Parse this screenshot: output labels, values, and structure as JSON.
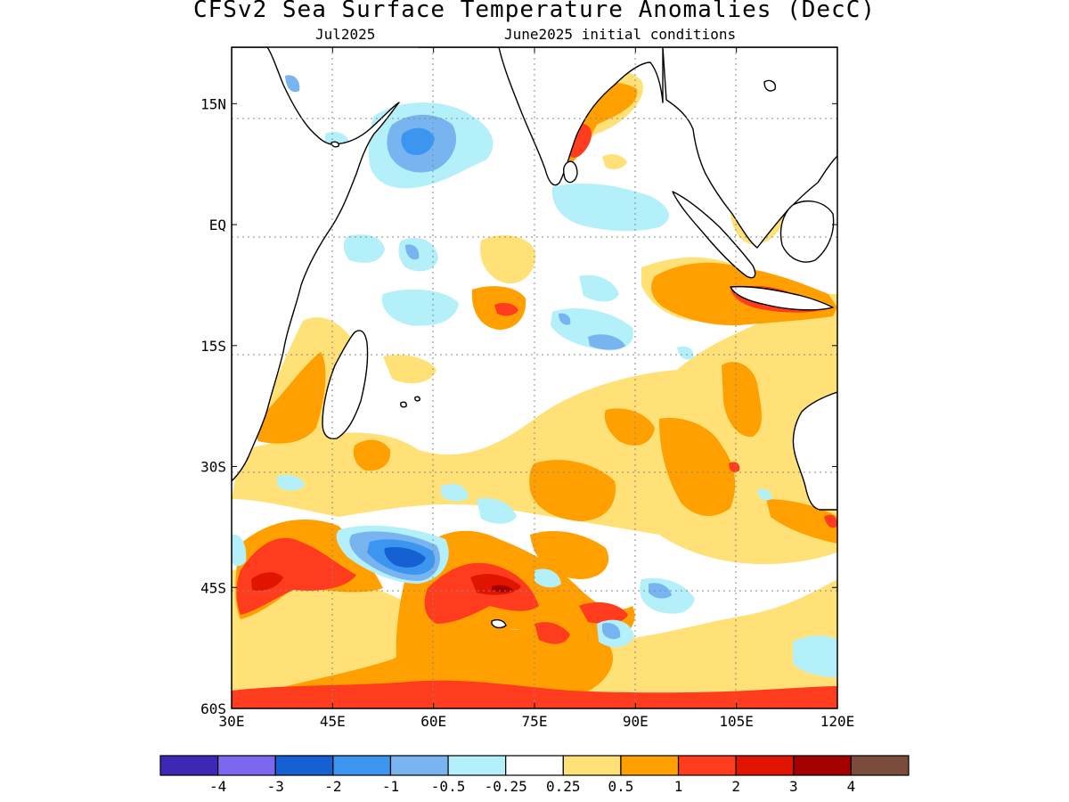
{
  "header": {
    "title": "CFSv2 Sea Surface Temperature Anomalies (DecC)",
    "month": "Jul2025",
    "init": "June2025 initial conditions"
  },
  "axes": {
    "lat_labels": [
      "15N",
      "EQ",
      "15S",
      "30S",
      "45S",
      "60S"
    ],
    "lon_labels": [
      "30E",
      "45E",
      "60E",
      "75E",
      "90E",
      "105E",
      "120E"
    ],
    "lat_values": [
      15,
      0,
      -15,
      -30,
      -45,
      -60
    ],
    "lon_values": [
      30,
      45,
      60,
      75,
      90,
      105,
      120
    ],
    "lat_range": [
      -60,
      22
    ],
    "lon_range": [
      30,
      120
    ]
  },
  "colorbar": {
    "colors": [
      "#3c28b4",
      "#7b68ee",
      "#1560d2",
      "#3c96f0",
      "#78b4f0",
      "#b4f0fa",
      "#ffffff",
      "#ffe178",
      "#ffa000",
      "#ff3c1e",
      "#e11400",
      "#a50000",
      "#7b4b3c"
    ],
    "labels": [
      "-4",
      "-3",
      "-2",
      "-1",
      "-0.5",
      "-0.25",
      "0.25",
      "0.5",
      "1",
      "2",
      "3",
      "4"
    ]
  },
  "legend_colors": {
    "ocean_neutral": "#ffffff",
    "land": "#ffffff",
    "coastline": "#000000"
  }
}
